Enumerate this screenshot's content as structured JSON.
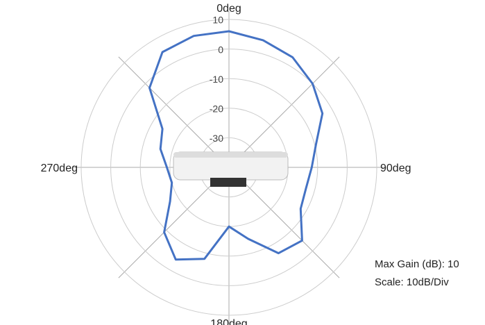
{
  "chart_data": {
    "type": "polar",
    "theta": [
      0,
      15,
      30,
      45,
      60,
      75,
      90,
      105,
      120,
      135,
      150,
      165,
      180,
      195,
      210,
      225,
      240,
      255,
      270,
      285,
      300,
      315,
      330,
      345
    ],
    "series": [
      {
        "color": "#4472c4",
        "values": [
          6,
          4.5,
          3,
          0,
          -3.5,
          -9.5,
          -12,
          -13,
          -12,
          -5,
          -6.5,
          -15,
          -20,
          -8,
          -4,
          -9,
          -17,
          -20,
          -19,
          -16,
          -14,
          -2,
          5,
          6
        ]
      }
    ],
    "rlim": [
      -40,
      10
    ],
    "rticks": [
      -30,
      -20,
      -10,
      0,
      10
    ],
    "angle_labels": [
      {
        "value": 0,
        "label": "0deg"
      },
      {
        "value": 90,
        "label": "90deg"
      },
      {
        "value": 180,
        "label": "180deg"
      },
      {
        "value": 270,
        "label": "270deg"
      }
    ],
    "annotations": [
      "Max Gain (dB): 10",
      "Scale: 10dB/Div"
    ]
  }
}
